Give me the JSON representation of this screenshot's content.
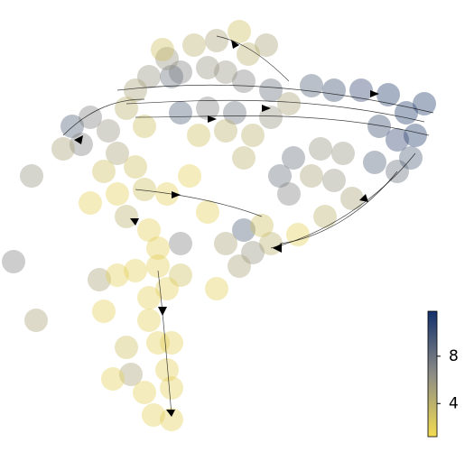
{
  "chart_data": {
    "type": "scatter",
    "x": [
      450,
      430,
      400,
      370,
      345,
      460,
      440,
      420,
      470,
      415,
      440,
      455,
      300,
      270,
      250,
      230,
      200,
      190,
      165,
      150,
      140,
      160,
      200,
      230,
      260,
      300,
      320,
      220,
      250,
      280,
      265,
      240,
      215,
      295,
      185,
      180,
      275,
      80,
      100,
      120,
      90,
      70,
      35,
      130,
      150,
      115,
      15,
      40,
      210,
      185,
      160,
      130,
      100,
      140,
      165,
      200,
      175,
      230,
      270,
      310,
      325,
      320,
      345,
      370,
      390,
      360,
      330,
      300,
      270,
      250,
      280,
      265,
      290,
      355,
      380,
      110,
      130,
      150,
      175,
      200,
      240,
      165,
      185,
      115,
      165,
      175,
      190,
      140,
      185,
      145,
      125,
      160,
      190,
      170,
      190
    ],
    "y": [
      355,
      375,
      380,
      380,
      385,
      330,
      325,
      340,
      365,
      300,
      290,
      305,
      380,
      390,
      400,
      405,
      400,
      395,
      395,
      380,
      360,
      340,
      355,
      360,
      355,
      350,
      365,
      330,
      335,
      330,
      445,
      435,
      430,
      430,
      415,
      425,
      420,
      340,
      350,
      335,
      320,
      315,
      285,
      310,
      295,
      290,
      190,
      125,
      285,
      265,
      270,
      265,
      255,
      240,
      225,
      210,
      205,
      245,
      305,
      285,
      305,
      265,
      285,
      280,
      260,
      240,
      220,
      210,
      225,
      210,
      200,
      185,
      230,
      315,
      310,
      170,
      175,
      180,
      185,
      175,
      160,
      150,
      160,
      135,
      125,
      100,
      100,
      95,
      70,
      65,
      60,
      45,
      50,
      20,
      15
    ],
    "values": [
      11,
      11,
      10.5,
      10,
      9,
      11,
      10.5,
      10,
      11,
      9,
      8,
      9,
      8,
      7,
      6,
      6,
      7,
      8,
      6,
      5,
      4,
      3,
      9,
      7,
      8,
      6,
      5,
      3,
      4,
      4,
      3,
      5,
      4,
      5,
      6,
      3,
      4,
      9,
      7,
      6,
      7,
      5,
      6,
      5,
      3,
      3,
      7,
      5,
      2,
      2,
      3,
      2,
      2,
      4,
      2,
      7,
      2,
      2,
      4,
      8,
      8,
      7,
      5,
      6,
      5,
      4,
      2,
      4,
      9,
      5,
      6,
      5,
      3,
      6,
      6,
      5,
      2,
      2,
      2,
      3,
      2,
      2,
      2,
      2,
      2,
      2,
      2,
      3,
      2,
      5,
      2,
      2,
      2,
      2,
      2
    ],
    "xlim": [
      0,
      490
    ],
    "ylim": [
      0,
      480
    ],
    "colormap": [
      "#f2dc50",
      "#8c8c86",
      "#13306b"
    ],
    "clim": [
      1.2,
      11.8
    ],
    "cticks": [
      4,
      8
    ]
  }
}
